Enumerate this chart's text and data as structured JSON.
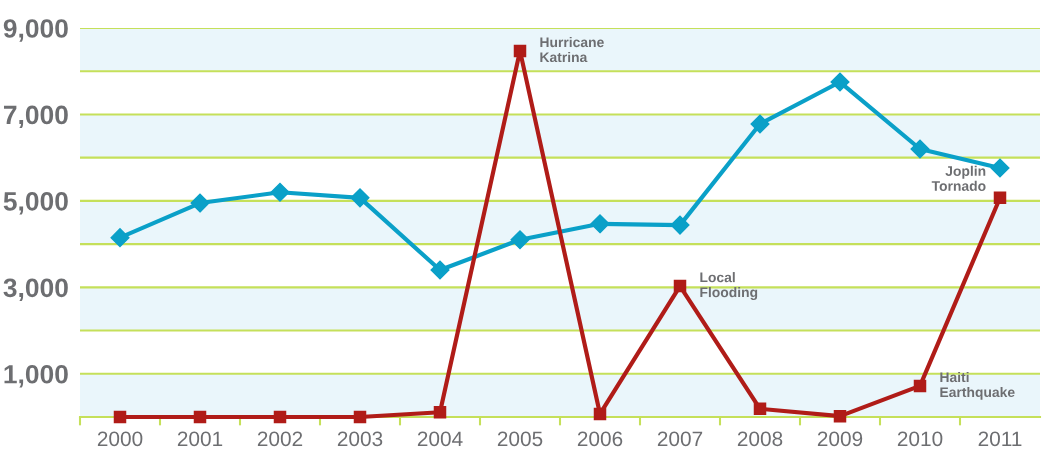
{
  "chart_data": {
    "type": "line",
    "categories": [
      "2000",
      "2001",
      "2002",
      "2003",
      "2004",
      "2005",
      "2006",
      "2007",
      "2008",
      "2009",
      "2010",
      "2011"
    ],
    "series": [
      {
        "color": "#0aa0c8",
        "marker": "diamond",
        "values": [
          4150,
          4950,
          5200,
          5070,
          3400,
          4100,
          4470,
          4440,
          6780,
          7750,
          6200,
          5760
        ]
      },
      {
        "color": "#b01c18",
        "marker": "square",
        "values": [
          0,
          0,
          0,
          0,
          110,
          8470,
          70,
          3030,
          190,
          20,
          720,
          5070
        ]
      }
    ],
    "ylim": [
      0,
      9000
    ],
    "yticks": [
      {
        "value": 0,
        "label": null
      },
      {
        "value": 1000,
        "label": "1,000"
      },
      {
        "value": 2000,
        "label": null
      },
      {
        "value": 3000,
        "label": "3,000"
      },
      {
        "value": 4000,
        "label": null
      },
      {
        "value": 5000,
        "label": "5,000"
      },
      {
        "value": 6000,
        "label": null
      },
      {
        "value": 7000,
        "label": "7,000"
      },
      {
        "value": 8000,
        "label": null
      },
      {
        "value": 9000,
        "label": "9,000"
      }
    ],
    "grid": "y",
    "bands": [
      {
        "axis": "y",
        "from": 0,
        "to": 1000,
        "color": "#eaf6fb"
      },
      {
        "axis": "y",
        "from": 2000,
        "to": 3000,
        "color": "#eaf6fb"
      },
      {
        "axis": "y",
        "from": 4000,
        "to": 5000,
        "color": "#eaf6fb"
      },
      {
        "axis": "y",
        "from": 6000,
        "to": 7000,
        "color": "#eaf6fb"
      },
      {
        "axis": "y",
        "from": 8000,
        "to": 9000,
        "color": "#eaf6fb"
      }
    ],
    "annotations": [
      {
        "text": "Hurricane\nKatrina",
        "x": "2005",
        "y": 8470
      },
      {
        "text": "Local\nFlooding",
        "x": "2007",
        "y": 3030
      },
      {
        "text": "Haiti\nEarthquake",
        "x": "2010",
        "y": 720
      },
      {
        "text": "Joplin\nTornado",
        "x": "2011",
        "y": 5070
      }
    ]
  }
}
